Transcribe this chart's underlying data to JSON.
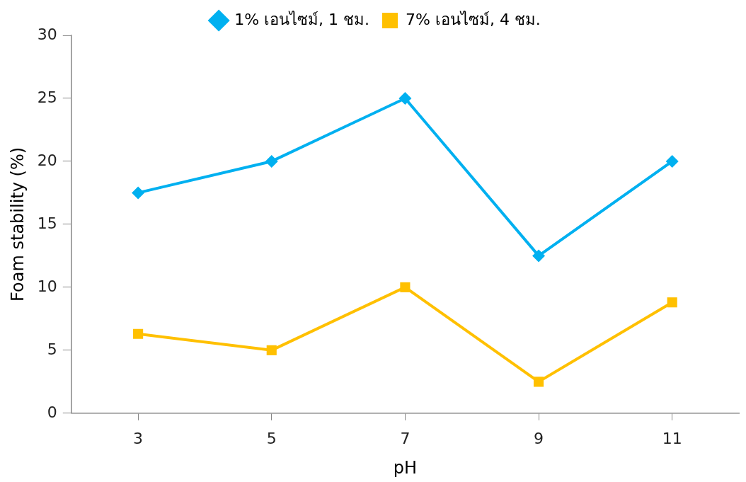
{
  "chart_data": {
    "type": "line",
    "xlabel": "pH",
    "ylabel": "Foam stability (%)",
    "categories": [
      "3",
      "5",
      "7",
      "9",
      "11"
    ],
    "series": [
      {
        "name": "1% เอนไซม์, 1 ชม.",
        "color": "#00b0f0",
        "marker": "diamond",
        "values": [
          17.5,
          20,
          25,
          12.5,
          20
        ]
      },
      {
        "name": "7% เอนไซม์, 4 ชม.",
        "color": "#ffc000",
        "marker": "square",
        "values": [
          6.3,
          5,
          10,
          2.5,
          8.8
        ]
      }
    ],
    "ylim": [
      0,
      30
    ],
    "yticks": [
      0,
      5,
      10,
      15,
      20,
      25,
      30
    ],
    "grid": false,
    "legend": "top",
    "line_style": "solid"
  }
}
